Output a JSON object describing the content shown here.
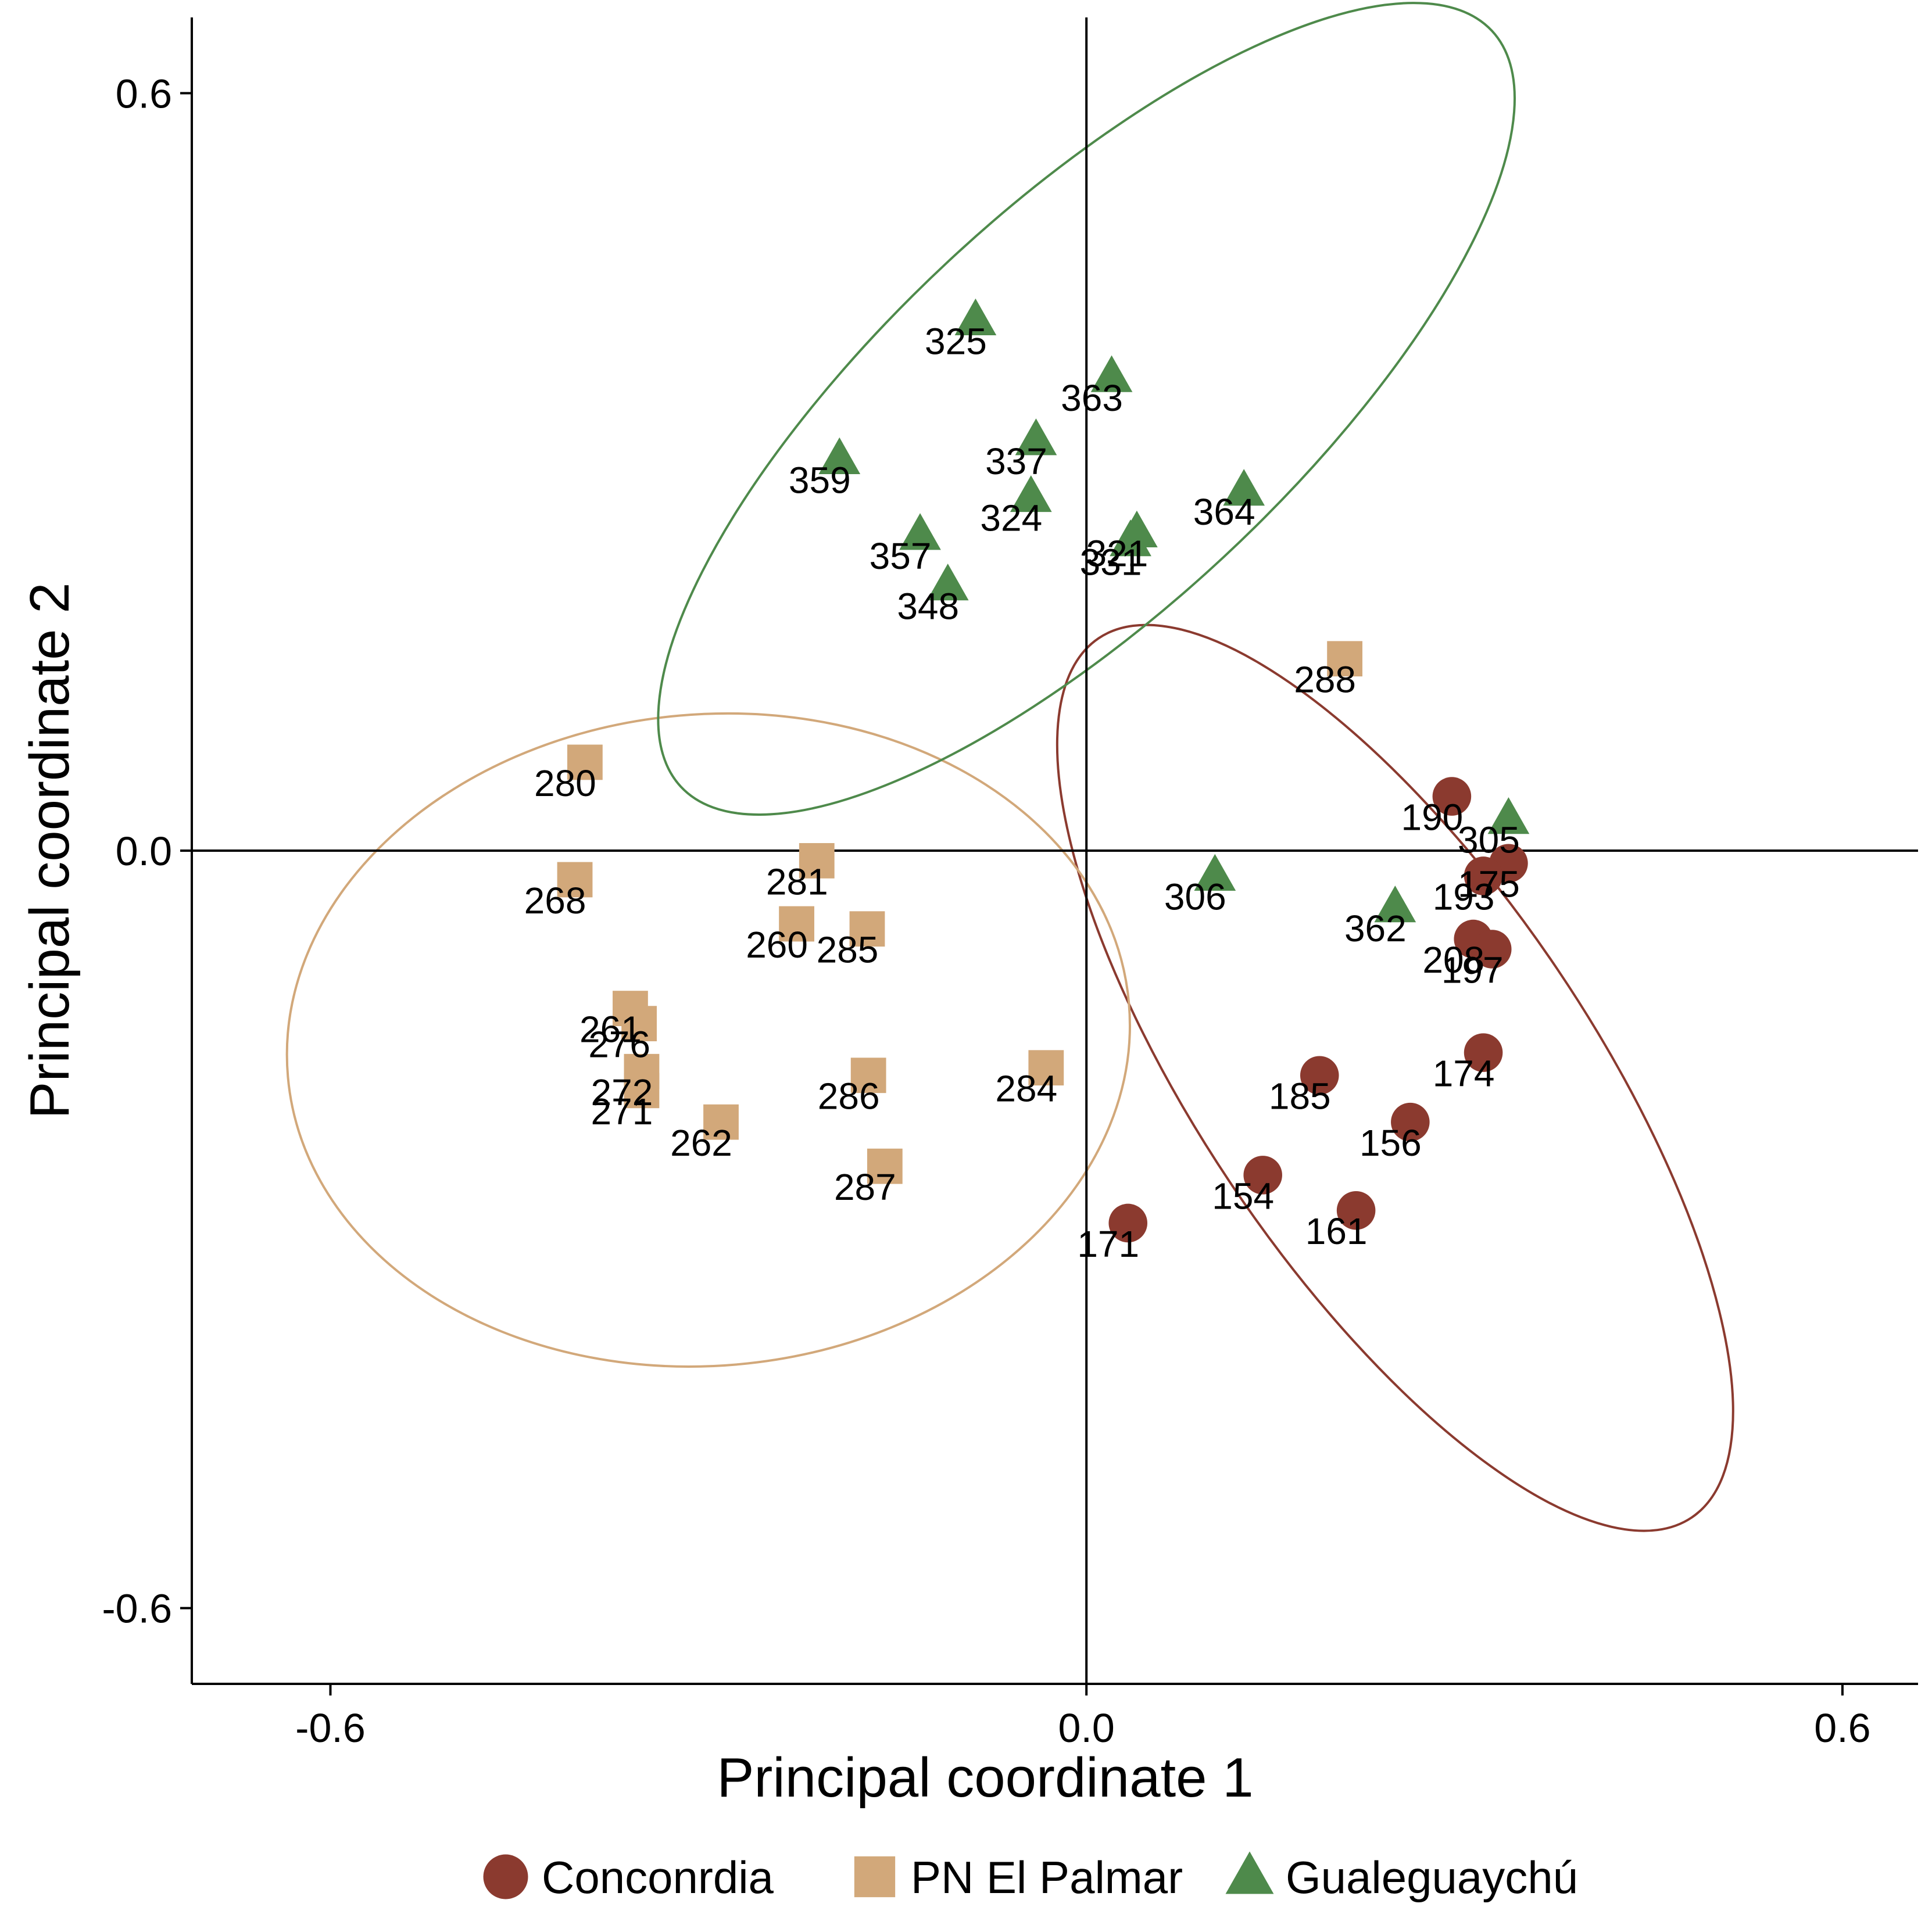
{
  "chart_data": {
    "type": "scatter",
    "xlabel": "Principal coordinate 1",
    "ylabel": "Principal coordinate 2",
    "xlim": [
      -0.71,
      0.66
    ],
    "ylim": [
      -0.66,
      0.66
    ],
    "x_ticks": [
      -0.6,
      0.0,
      0.6
    ],
    "x_tick_labels": [
      "-0.6",
      "0.0",
      "0.6"
    ],
    "y_ticks": [
      -0.6,
      0.0,
      0.6
    ],
    "y_tick_labels": [
      "-0.6",
      "0.0",
      "0.6"
    ],
    "reference_lines": {
      "x": 0,
      "y": 0
    },
    "grid": false,
    "legend_position": "bottom",
    "series": [
      {
        "name": "Conconrdia",
        "marker": "circle",
        "color": "#8B3A2F",
        "points": [
          {
            "label": "190",
            "x": 0.29,
            "y": 0.043
          },
          {
            "label": "175",
            "x": 0.335,
            "y": -0.01
          },
          {
            "label": "193",
            "x": 0.315,
            "y": -0.02
          },
          {
            "label": "208",
            "x": 0.307,
            "y": -0.07
          },
          {
            "label": "197",
            "x": 0.322,
            "y": -0.078
          },
          {
            "label": "174",
            "x": 0.315,
            "y": -0.16
          },
          {
            "label": "185",
            "x": 0.185,
            "y": -0.178
          },
          {
            "label": "156",
            "x": 0.257,
            "y": -0.215
          },
          {
            "label": "154",
            "x": 0.14,
            "y": -0.257
          },
          {
            "label": "161",
            "x": 0.214,
            "y": -0.285
          },
          {
            "label": "171",
            "x": 0.033,
            "y": -0.295
          }
        ]
      },
      {
        "name": "PN El Palmar",
        "marker": "square",
        "color": "#D2A87A",
        "points": [
          {
            "label": "288",
            "x": 0.205,
            "y": 0.152
          },
          {
            "label": "280",
            "x": -0.398,
            "y": 0.07
          },
          {
            "label": "268",
            "x": -0.406,
            "y": -0.023
          },
          {
            "label": "281",
            "x": -0.214,
            "y": -0.008
          },
          {
            "label": "260",
            "x": -0.23,
            "y": -0.058
          },
          {
            "label": "285",
            "x": -0.174,
            "y": -0.062
          },
          {
            "label": "261",
            "x": -0.362,
            "y": -0.125
          },
          {
            "label": "276",
            "x": -0.355,
            "y": -0.137
          },
          {
            "label": "272",
            "x": -0.353,
            "y": -0.175
          },
          {
            "label": "286",
            "x": -0.173,
            "y": -0.178
          },
          {
            "label": "284",
            "x": -0.032,
            "y": -0.172
          },
          {
            "label": "271",
            "x": -0.353,
            "y": -0.19
          },
          {
            "label": "262",
            "x": -0.29,
            "y": -0.215
          },
          {
            "label": "287",
            "x": -0.16,
            "y": -0.25
          }
        ]
      },
      {
        "name": "Gualeguaychú",
        "marker": "triangle",
        "color": "#4E8A4B",
        "points": [
          {
            "label": "325",
            "x": -0.088,
            "y": 0.42
          },
          {
            "label": "363",
            "x": 0.02,
            "y": 0.375
          },
          {
            "label": "337",
            "x": -0.04,
            "y": 0.325
          },
          {
            "label": "359",
            "x": -0.196,
            "y": 0.31
          },
          {
            "label": "324",
            "x": -0.044,
            "y": 0.28
          },
          {
            "label": "364",
            "x": 0.125,
            "y": 0.285
          },
          {
            "label": "321",
            "x": 0.04,
            "y": 0.252
          },
          {
            "label": "357",
            "x": -0.132,
            "y": 0.25
          },
          {
            "label": "331",
            "x": 0.035,
            "y": 0.245
          },
          {
            "label": "348",
            "x": -0.11,
            "y": 0.21
          },
          {
            "label": "306",
            "x": 0.102,
            "y": -0.02
          },
          {
            "label": "362",
            "x": 0.245,
            "y": -0.045
          },
          {
            "label": "305",
            "x": 0.335,
            "y": 0.025
          }
        ]
      }
    ],
    "ellipses": [
      {
        "series": "Conconrdia",
        "cx": 0.245,
        "cy": -0.18,
        "rx": 0.155,
        "ry": 0.42,
        "rotation_deg": -34
      },
      {
        "series": "PN El Palmar",
        "cx": -0.3,
        "cy": -0.15,
        "rx": 0.335,
        "ry": 0.258,
        "rotation_deg": -5
      },
      {
        "series": "Gualeguaychú",
        "cx": 0.0,
        "cy": 0.35,
        "rx": 0.44,
        "ry": 0.16,
        "rotation_deg": -43
      }
    ]
  }
}
